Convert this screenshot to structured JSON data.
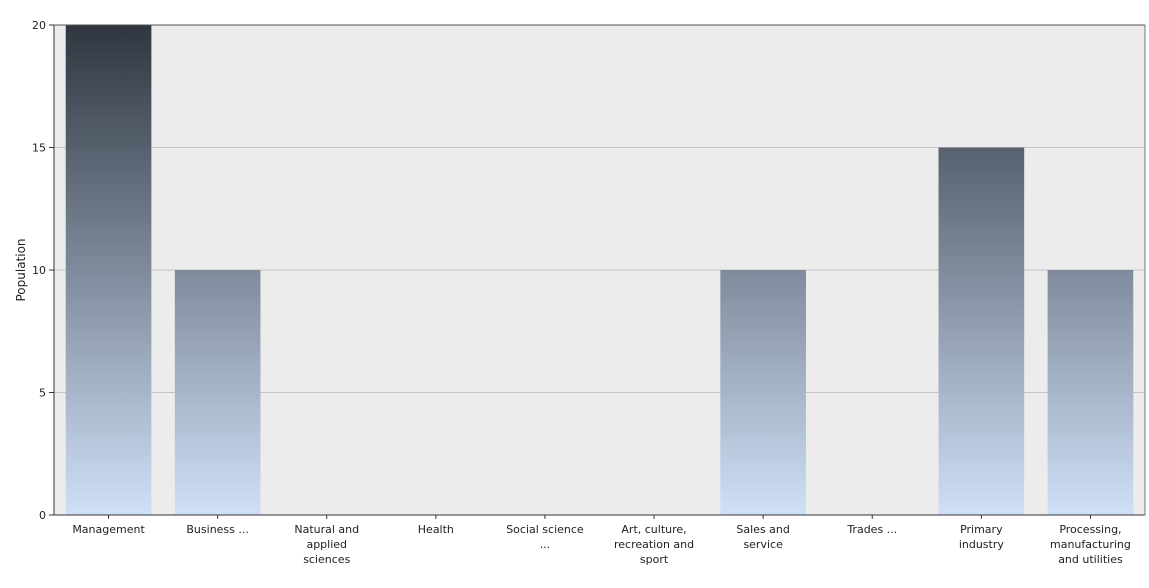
{
  "chart_data": {
    "type": "bar",
    "title": "",
    "xlabel": "",
    "ylabel": "Population",
    "ylim": [
      0,
      20
    ],
    "yticks": [
      "0",
      "5",
      "10",
      "15",
      "20"
    ],
    "grid": true,
    "categories": [
      [
        "Management"
      ],
      [
        "Business ..."
      ],
      [
        "Natural and",
        "applied",
        "sciences"
      ],
      [
        "Health"
      ],
      [
        "Social science",
        "..."
      ],
      [
        "Art, culture,",
        "recreation and",
        "sport"
      ],
      [
        "Sales and",
        "service"
      ],
      [
        "Trades ..."
      ],
      [
        "Primary",
        "industry"
      ],
      [
        "Processing,",
        "manufacturing",
        "and utilities"
      ]
    ],
    "values": [
      20,
      10,
      0,
      0,
      0,
      0,
      10,
      0,
      15,
      10
    ],
    "colors": {
      "plot_background": "#ececec",
      "bar_top": "#2f3640",
      "bar_bottom": "#cfe0f7",
      "gridline": "#c4c4c4"
    }
  }
}
